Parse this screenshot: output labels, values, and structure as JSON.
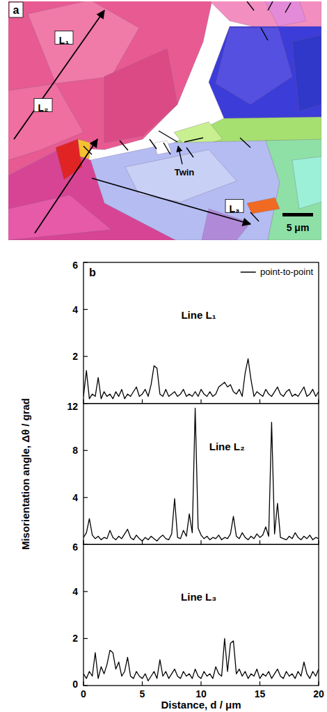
{
  "plot_label": "b",
  "map": {
    "label": "a",
    "lines": [
      "L₁",
      "L₂",
      "L₃"
    ],
    "twin": "Twin",
    "scale": "5 μm"
  },
  "chart_data": [
    {
      "type": "line",
      "title": "Line L₁",
      "x": [
        0,
        0.25,
        0.5,
        0.75,
        1,
        1.25,
        1.5,
        1.75,
        2,
        2.25,
        2.5,
        2.75,
        3,
        3.25,
        3.5,
        3.75,
        4,
        4.25,
        4.5,
        4.75,
        5,
        5.25,
        5.5,
        5.75,
        6,
        6.25,
        6.5,
        6.75,
        7,
        7.25,
        7.5,
        7.75,
        8,
        8.25,
        8.5,
        8.75,
        9,
        9.25,
        9.5,
        9.75,
        10,
        10.25,
        10.5,
        10.75,
        11,
        11.25,
        11.5,
        11.75,
        12,
        12.25,
        12.5,
        12.75,
        13,
        13.25,
        13.5,
        13.75,
        14,
        14.25,
        14.5,
        14.75,
        15,
        15.25,
        15.5,
        15.75,
        16,
        16.25,
        16.5,
        16.75,
        17,
        17.25,
        17.5,
        17.75,
        18,
        18.25,
        18.5,
        18.75,
        19,
        19.25,
        19.5,
        19.75,
        20
      ],
      "series": [
        {
          "name": "point-to-point",
          "color": "#000000",
          "values": [
            0.3,
            1.4,
            0.2,
            0.4,
            0.3,
            1.1,
            0.2,
            0.5,
            0.3,
            0.4,
            0.2,
            0.5,
            0.3,
            0.6,
            0.2,
            0.4,
            0.3,
            0.5,
            0.7,
            0.3,
            0.4,
            0.6,
            0.3,
            0.8,
            1.6,
            1.5,
            0.4,
            0.3,
            0.6,
            0.3,
            0.4,
            0.5,
            0.3,
            0.4,
            0.6,
            0.3,
            0.4,
            0.3,
            0.5,
            0.3,
            0.6,
            0.4,
            0.3,
            0.5,
            0.3,
            0.4,
            0.7,
            0.8,
            0.9,
            0.7,
            0.8,
            0.5,
            0.4,
            0.6,
            0.3,
            1.3,
            1.9,
            1.0,
            0.3,
            0.5,
            0.4,
            0.3,
            0.6,
            0.4,
            0.3,
            0.5,
            0.7,
            0.4,
            0.3,
            0.5,
            0.6,
            0.3,
            0.4,
            0.3,
            0.5,
            0.7,
            0.3,
            0.4,
            0.6,
            0.3,
            0.5
          ]
        }
      ],
      "xlim": [
        0,
        20
      ],
      "xticks": [
        0,
        5,
        10,
        15,
        20
      ],
      "ylim": [
        0,
        6
      ],
      "yticks": [
        2,
        4,
        6
      ],
      "legend": "upper right",
      "tick_labels": "y"
    },
    {
      "type": "line",
      "title": "Line L₂",
      "ylabel": "Misorientation angle, Δθ / grad",
      "color": "#000000",
      "x": [
        0,
        0.25,
        0.5,
        0.75,
        1,
        1.25,
        1.5,
        1.75,
        2,
        2.25,
        2.5,
        2.75,
        3,
        3.25,
        3.5,
        3.75,
        4,
        4.25,
        4.5,
        4.75,
        5,
        5.25,
        5.5,
        5.75,
        6,
        6.25,
        6.5,
        6.75,
        7,
        7.25,
        7.5,
        7.75,
        8,
        8.25,
        8.5,
        8.75,
        9,
        9.25,
        9.5,
        9.75,
        10,
        10.25,
        10.5,
        10.75,
        11,
        11.25,
        11.5,
        11.75,
        12,
        12.25,
        12.5,
        12.75,
        13,
        13.25,
        13.5,
        13.75,
        14,
        14.25,
        14.5,
        14.75,
        15,
        15.25,
        15.5,
        15.75,
        16,
        16.25,
        16.5,
        16.75,
        17,
        17.25,
        17.5,
        17.75,
        18,
        18.25,
        18.5,
        18.75,
        19,
        19.25,
        19.5,
        19.75,
        20
      ],
      "values": [
        0.6,
        1.0,
        2.2,
        0.8,
        0.5,
        0.7,
        0.4,
        0.6,
        0.5,
        1.2,
        0.6,
        0.4,
        0.7,
        0.5,
        0.9,
        1.3,
        0.6,
        0.4,
        0.8,
        0.5,
        0.3,
        0.6,
        0.4,
        0.7,
        0.5,
        0.3,
        0.6,
        0.8,
        0.5,
        0.4,
        0.9,
        3.9,
        0.6,
        0.5,
        1.2,
        0.7,
        2.6,
        1.0,
        11.6,
        1.4,
        0.8,
        0.5,
        0.7,
        0.4,
        0.6,
        0.5,
        0.8,
        0.4,
        0.6,
        0.5,
        0.9,
        2.4,
        0.7,
        0.5,
        1.0,
        0.6,
        0.4,
        0.7,
        0.5,
        0.9,
        0.6,
        0.8,
        1.5,
        0.7,
        10.4,
        0.9,
        3.5,
        0.6,
        0.5,
        0.4,
        0.7,
        0.5,
        1.0,
        0.6,
        0.4,
        0.7,
        0.5,
        0.8,
        0.4,
        0.6,
        0.5
      ],
      "xlim": [
        0,
        20
      ],
      "xticks": [
        0,
        5,
        10,
        15,
        20
      ],
      "ylim": [
        0,
        12
      ],
      "yticks": [
        4,
        8,
        12
      ],
      "tick_labels": "y"
    },
    {
      "type": "line",
      "title": "Line L₃",
      "xlabel": "Distance, d / μm",
      "color": "#000000",
      "x": [
        0,
        0.25,
        0.5,
        0.75,
        1,
        1.25,
        1.5,
        1.75,
        2,
        2.25,
        2.5,
        2.75,
        3,
        3.25,
        3.5,
        3.75,
        4,
        4.25,
        4.5,
        4.75,
        5,
        5.25,
        5.5,
        5.75,
        6,
        6.25,
        6.5,
        6.75,
        7,
        7.25,
        7.5,
        7.75,
        8,
        8.25,
        8.5,
        8.75,
        9,
        9.25,
        9.5,
        9.75,
        10,
        10.25,
        10.5,
        10.75,
        11,
        11.25,
        11.5,
        11.75,
        12,
        12.25,
        12.5,
        12.75,
        13,
        13.25,
        13.5,
        13.75,
        14,
        14.25,
        14.5,
        14.75,
        15,
        15.25,
        15.5,
        15.75,
        16,
        16.25,
        16.5,
        16.75,
        17,
        17.25,
        17.5,
        17.75,
        18,
        18.25,
        18.5,
        18.75,
        19,
        19.25,
        19.5,
        19.75,
        20
      ],
      "values": [
        0.5,
        0.3,
        0.6,
        0.4,
        1.4,
        0.3,
        0.8,
        0.5,
        0.9,
        1.5,
        1.4,
        0.7,
        1.0,
        0.4,
        0.6,
        1.2,
        0.4,
        0.3,
        0.6,
        0.4,
        0.3,
        0.5,
        0.2,
        0.4,
        0.6,
        0.3,
        1.1,
        0.4,
        0.6,
        0.3,
        0.5,
        0.7,
        0.4,
        0.3,
        0.6,
        0.4,
        0.5,
        0.3,
        0.7,
        0.4,
        0.3,
        0.6,
        0.4,
        0.5,
        0.3,
        0.8,
        0.5,
        0.4,
        2.0,
        0.6,
        1.8,
        1.9,
        0.5,
        0.7,
        0.4,
        0.6,
        0.3,
        0.5,
        0.4,
        0.7,
        0.3,
        0.5,
        0.4,
        0.6,
        0.3,
        0.5,
        0.7,
        0.4,
        0.3,
        0.6,
        0.4,
        0.5,
        0.3,
        0.6,
        0.4,
        1.0,
        0.5,
        0.3,
        0.6,
        0.4,
        0.7
      ],
      "xlim": [
        0,
        20
      ],
      "xticks": [
        0,
        5,
        10,
        15,
        20
      ],
      "ylim": [
        0,
        6
      ],
      "yticks": [
        0,
        2,
        4,
        6
      ]
    }
  ]
}
